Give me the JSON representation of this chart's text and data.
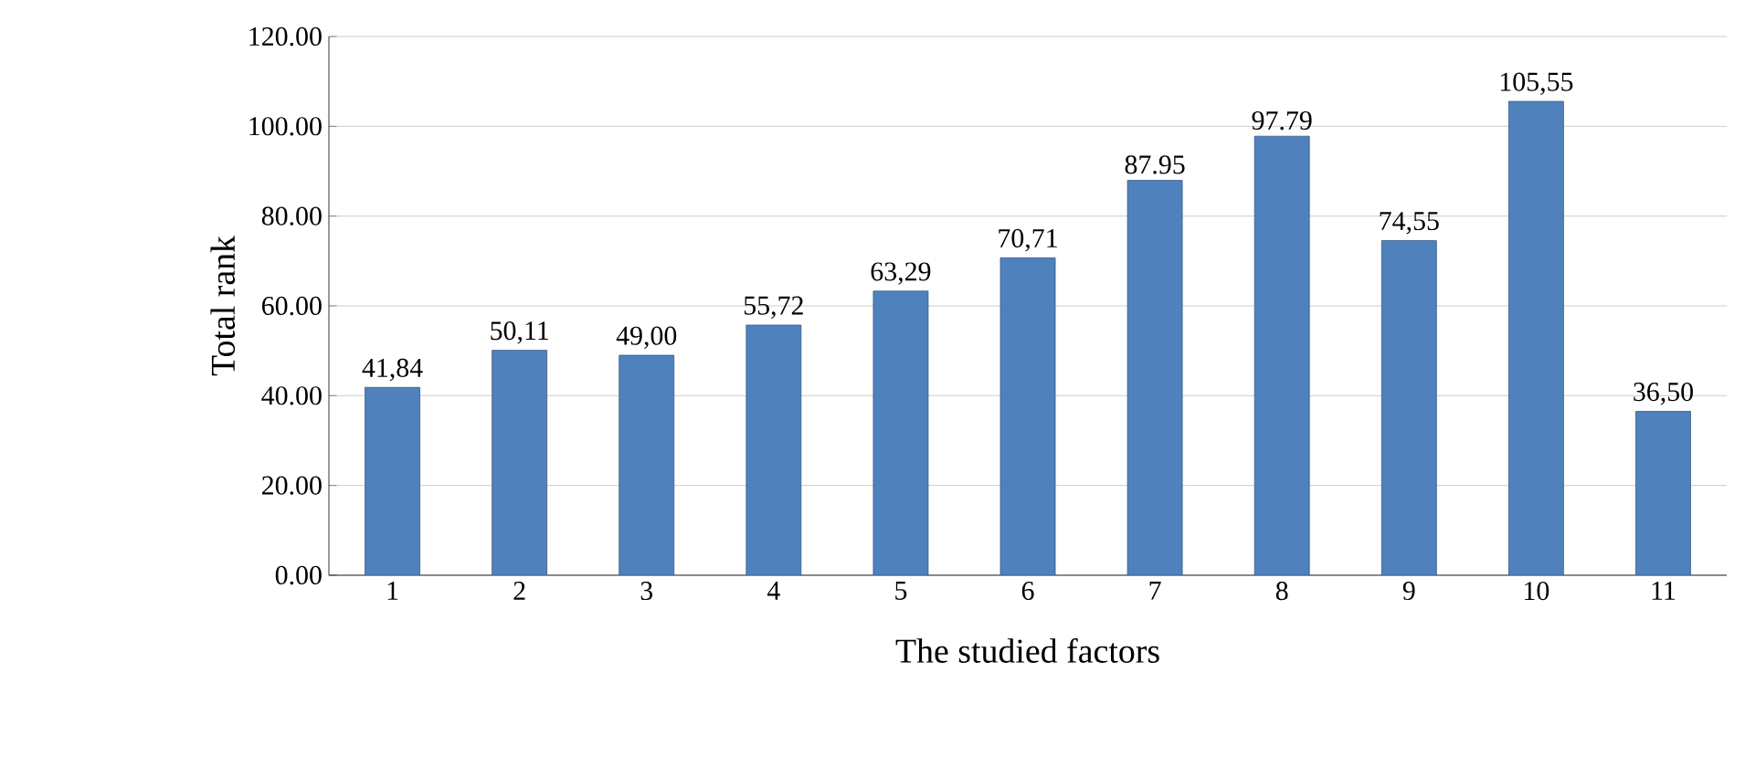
{
  "chart_data": {
    "type": "bar",
    "xlabel": "The studied factors",
    "ylabel": "Total rank",
    "categories": [
      "1",
      "2",
      "3",
      "4",
      "5",
      "6",
      "7",
      "8",
      "9",
      "10",
      "11"
    ],
    "values": [
      41.84,
      50.11,
      49.0,
      55.72,
      63.29,
      70.71,
      87.95,
      97.79,
      74.55,
      105.55,
      36.5
    ],
    "value_labels": [
      "41,84",
      "50,11",
      "49,00",
      "55,72",
      "63,29",
      "70,71",
      "87.95",
      "97.79",
      "74,55",
      "105,55",
      "36,50"
    ],
    "color": "#4f81bd",
    "ylim": [
      0,
      120
    ],
    "yticks": [
      {
        "value": 0,
        "label": "0.00"
      },
      {
        "value": 20,
        "label": "20.00"
      },
      {
        "value": 40,
        "label": "40.00"
      },
      {
        "value": 60,
        "label": "60.00"
      },
      {
        "value": 80,
        "label": "80.00"
      },
      {
        "value": 100,
        "label": "100.00"
      },
      {
        "value": 120,
        "label": "120.00"
      }
    ],
    "grid": "y"
  }
}
